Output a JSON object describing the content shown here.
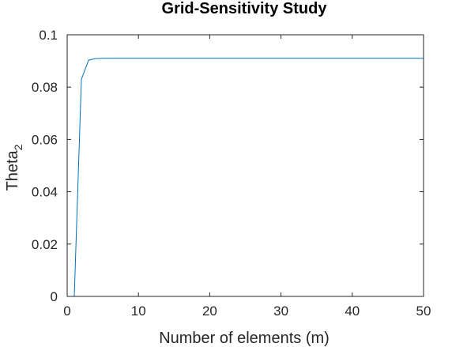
{
  "chart_data": {
    "type": "line",
    "title": "Grid-Sensitivity Study",
    "xlabel": "Number of elements (m)",
    "ylabel_main": "Theta",
    "ylabel_subscript": "2",
    "xlim": [
      0,
      50
    ],
    "ylim": [
      0,
      0.1
    ],
    "xticks": [
      0,
      10,
      20,
      30,
      40,
      50
    ],
    "yticks": [
      0,
      0.02,
      0.04,
      0.06,
      0.08,
      0.1
    ],
    "xtick_labels": [
      "0",
      "10",
      "20",
      "30",
      "40",
      "50"
    ],
    "ytick_labels": [
      "0",
      "0.02",
      "0.04",
      "0.06",
      "0.08",
      "0.1"
    ],
    "grid": false,
    "line_color": "#0072BD",
    "series": [
      {
        "x": [
          1,
          2,
          3,
          4,
          5,
          6,
          7,
          8,
          9,
          10,
          11,
          12,
          13,
          14,
          15,
          16,
          17,
          18,
          19,
          20,
          21,
          22,
          23,
          24,
          25,
          26,
          27,
          28,
          29,
          30,
          31,
          32,
          33,
          34,
          35,
          36,
          37,
          38,
          39,
          40,
          41,
          42,
          43,
          44,
          45,
          46,
          47,
          48,
          49,
          50
        ],
        "y": [
          0,
          0.083,
          0.0903,
          0.0909,
          0.091,
          0.091,
          0.091,
          0.091,
          0.091,
          0.091,
          0.091,
          0.091,
          0.091,
          0.091,
          0.091,
          0.091,
          0.091,
          0.091,
          0.091,
          0.091,
          0.091,
          0.091,
          0.091,
          0.091,
          0.091,
          0.091,
          0.091,
          0.091,
          0.091,
          0.091,
          0.091,
          0.091,
          0.091,
          0.091,
          0.091,
          0.091,
          0.091,
          0.091,
          0.091,
          0.091,
          0.091,
          0.091,
          0.091,
          0.091,
          0.091,
          0.091,
          0.091,
          0.091,
          0.091,
          0.091
        ]
      }
    ]
  }
}
